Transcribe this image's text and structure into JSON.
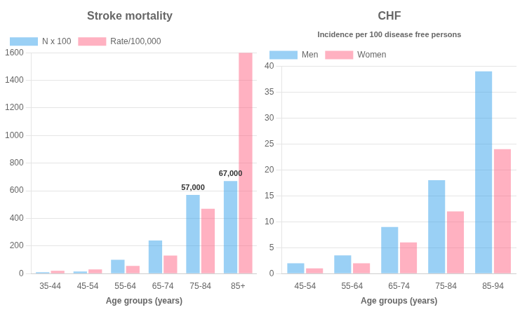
{
  "chart_data": [
    {
      "type": "bar",
      "title": "Stroke mortality",
      "categories": [
        "35-44",
        "45-54",
        "55-64",
        "65-74",
        "75-84",
        "85+"
      ],
      "series": [
        {
          "name": "N x 100",
          "values": [
            10,
            15,
            100,
            240,
            570,
            670
          ]
        },
        {
          "name": "Rate/100,000",
          "values": [
            20,
            30,
            55,
            130,
            470,
            1600
          ]
        }
      ],
      "xlabel": "Age groups (years)",
      "ylim": [
        0,
        1600
      ],
      "yticks": [
        0,
        200,
        400,
        600,
        800,
        1000,
        1200,
        1400,
        1600
      ],
      "grid": true,
      "legend": "upper left",
      "annotations": [
        {
          "text": "57,000",
          "category": "75-84",
          "series": "N x 100",
          "y": 595
        },
        {
          "text": "67,000",
          "category": "85+",
          "series": "N x 100",
          "y": 695
        }
      ]
    },
    {
      "type": "bar",
      "title": "CHF",
      "subtitle": "Incidence per 100 disease free persons",
      "categories": [
        "45-54",
        "55-64",
        "65-74",
        "75-84",
        "85-94"
      ],
      "series": [
        {
          "name": "Men",
          "values": [
            2,
            3.5,
            9,
            18,
            39
          ]
        },
        {
          "name": "Women",
          "values": [
            1,
            2,
            6,
            12,
            24
          ]
        }
      ],
      "xlabel": "Age groups (years)",
      "ylim": [
        0,
        40
      ],
      "yticks": [
        0,
        5,
        10,
        15,
        20,
        25,
        30,
        35,
        40
      ],
      "grid": true,
      "legend": "upper left"
    }
  ]
}
